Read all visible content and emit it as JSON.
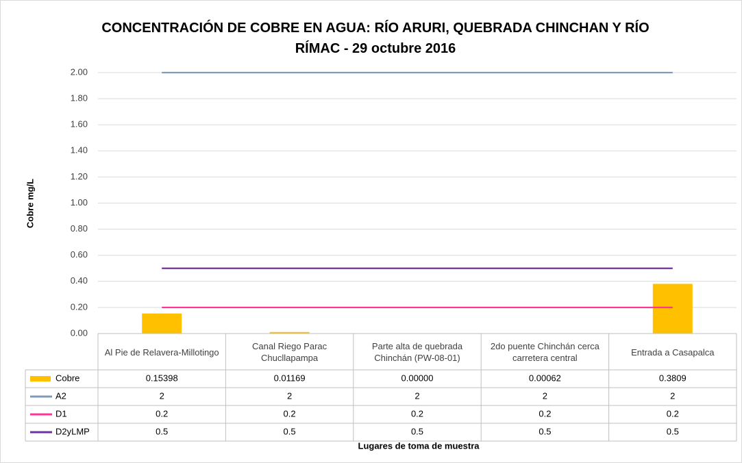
{
  "chart_data": {
    "type": "bar_line_table",
    "title": "CONCENTRACIÓN DE COBRE EN AGUA: RÍO ARURI, QUEBRADA CHINCHAN Y RÍO RÍMAC - 29 octubre 2016",
    "y_label": "Cobre mg/L",
    "x_label": "Lugares de toma de muestra",
    "categories": [
      "Al Pie de Relavera-Millotingo",
      "Canal Riego Parac Chucllapampa",
      "Parte alta de quebrada Chinchán (PW-08-01)",
      "2do puente Chinchán cerca carretera central",
      "Entrada a Casapalca"
    ],
    "series": [
      {
        "name": "Cobre",
        "kind": "bar",
        "color": "#ffc000",
        "values": [
          0.15398,
          0.01169,
          0,
          0.00062,
          0.3809
        ],
        "value_labels": [
          "0.15398",
          "0.01169",
          "0.00000",
          "0.00062",
          "0.3809"
        ]
      },
      {
        "name": "A2",
        "kind": "line",
        "color": "#7f9bb5",
        "values": [
          2,
          2,
          2,
          2,
          2
        ]
      },
      {
        "name": "D1",
        "kind": "line",
        "color": "#ff3399",
        "values": [
          0.2,
          0.2,
          0.2,
          0.2,
          0.2
        ]
      },
      {
        "name": "D2yLMP",
        "kind": "line",
        "color": "#7030a0",
        "values": [
          0.5,
          0.5,
          0.5,
          0.5,
          0.5
        ]
      }
    ],
    "ylim": [
      0,
      2
    ],
    "yticks": [
      {
        "value": 0,
        "label": "0.00"
      },
      {
        "value": 0.2,
        "label": "0.20"
      },
      {
        "value": 0.4,
        "label": "0.40"
      },
      {
        "value": 0.6,
        "label": "0.60"
      },
      {
        "value": 0.8,
        "label": "0.80"
      },
      {
        "value": 1,
        "label": "1.00"
      },
      {
        "value": 1.2,
        "label": "1.20"
      },
      {
        "value": 1.4,
        "label": "1.40"
      },
      {
        "value": 1.6,
        "label": "1.60"
      },
      {
        "value": 1.8,
        "label": "1.80"
      },
      {
        "value": 2,
        "label": "2.00"
      }
    ],
    "grid": true
  }
}
